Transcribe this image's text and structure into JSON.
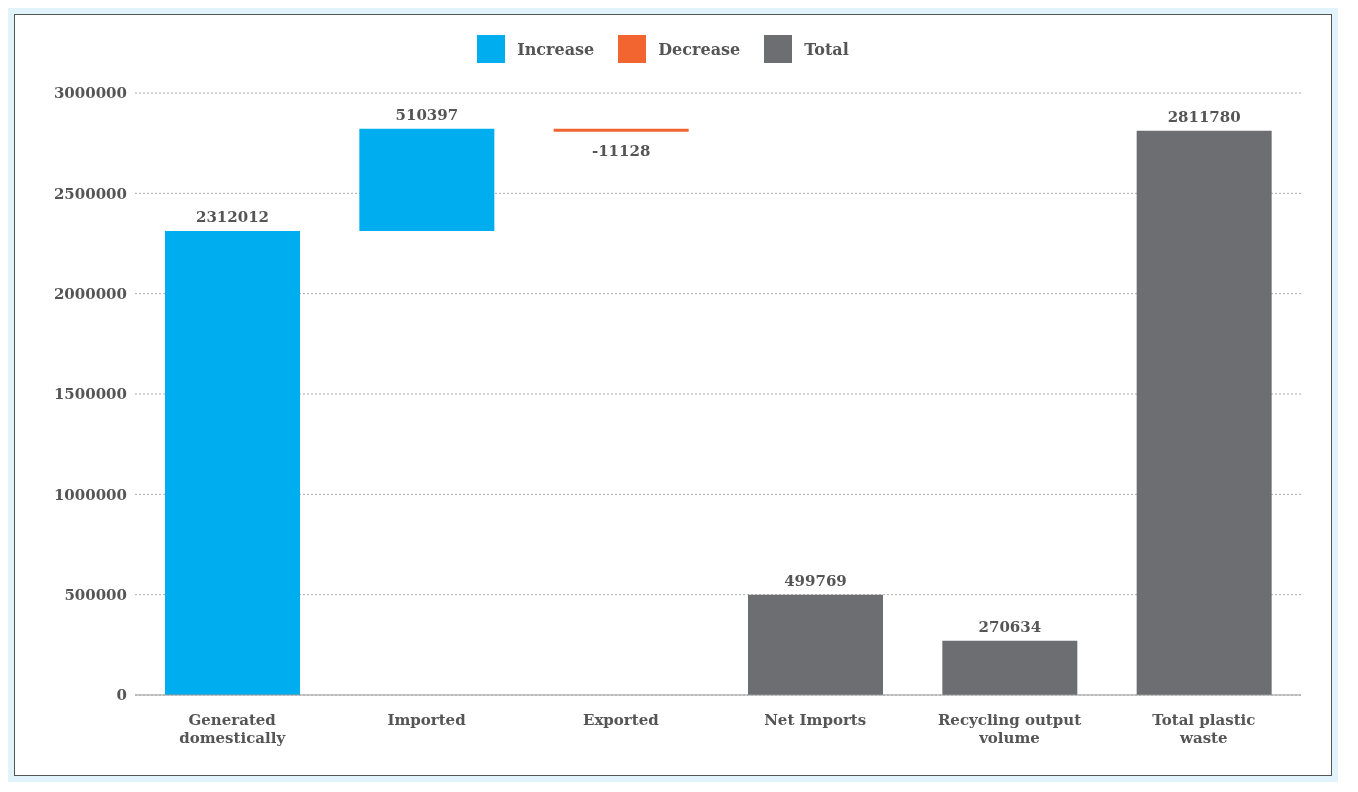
{
  "chart_data": {
    "type": "bar",
    "categories": [
      "Generated domestically",
      "Imported",
      "Exported",
      "Net Imports",
      "Recycling output volume",
      "Total plastic waste"
    ],
    "series": [
      {
        "name": "Increase",
        "color": "#00aeef",
        "values": [
          2312012,
          510397,
          null,
          null,
          null,
          null
        ],
        "base": [
          0,
          2312012,
          null,
          null,
          null,
          null
        ]
      },
      {
        "name": "Decrease",
        "color": "#f26531",
        "values": [
          null,
          null,
          -11128,
          null,
          null,
          null
        ],
        "base": [
          null,
          null,
          2822409,
          null,
          null,
          null
        ]
      },
      {
        "name": "Total",
        "color": "#6d6e71",
        "values": [
          null,
          null,
          null,
          499769,
          270634,
          2811780
        ],
        "base": [
          null,
          null,
          null,
          0,
          0,
          0
        ]
      }
    ],
    "ylim": [
      0,
      3000000
    ],
    "yticks": [
      0,
      500000,
      1000000,
      1500000,
      2000000,
      2500000,
      3000000
    ],
    "grid": "y",
    "legend": "top",
    "data_labels": true
  }
}
